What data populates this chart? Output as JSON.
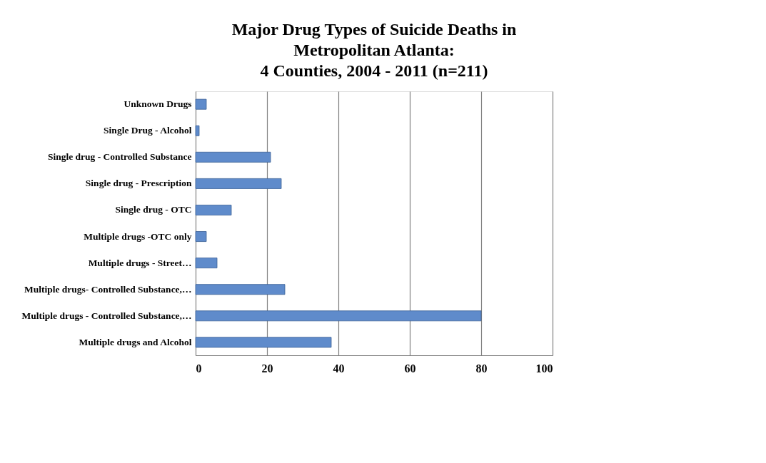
{
  "chart_data": {
    "type": "bar",
    "orientation": "horizontal",
    "title": "Major Drug Types of Suicide Deaths in\nMetropolitan Atlanta:\n4 Counties, 2004 - 2011 (n=211)",
    "categories": [
      "Unknown Drugs",
      "Single Drug - Alcohol",
      "Single drug - Controlled Substance",
      "Single drug - Prescription",
      "Single drug - OTC",
      "Multiple drugs -OTC only",
      "Multiple drugs - Street…",
      "Multiple drugs- Controlled Substance,…",
      "Multiple drugs - Controlled Substance,…",
      "Multiple drugs and Alcohol"
    ],
    "values": [
      3,
      1,
      21,
      24,
      10,
      3,
      6,
      25,
      80,
      38
    ],
    "color": "#5f8bcb",
    "xlim": [
      0,
      100
    ],
    "xticks": [
      0,
      20,
      40,
      60,
      80,
      100
    ],
    "grid": "x"
  }
}
